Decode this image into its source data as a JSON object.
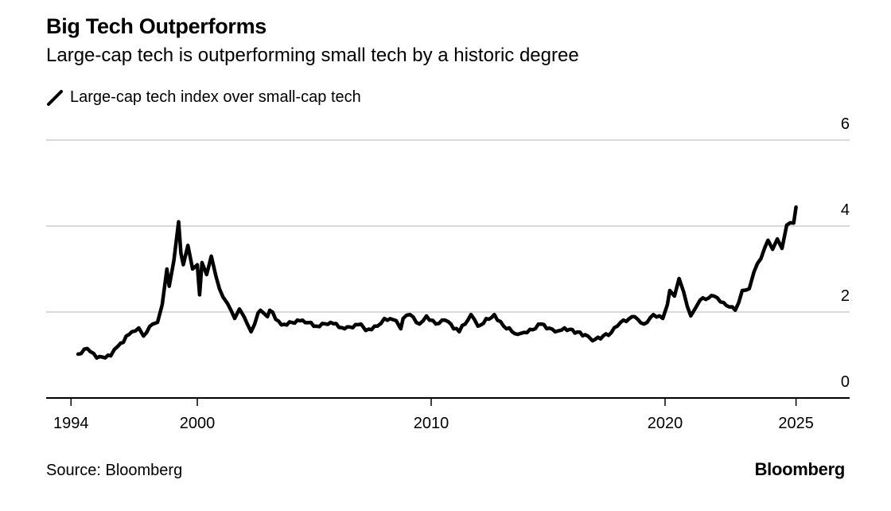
{
  "chart_data": {
    "type": "line",
    "title": "Big Tech Outperforms",
    "subtitle": "Large-cap tech is outperforming small tech by a historic degree",
    "legend": [
      "Large-cap tech index over small-cap tech"
    ],
    "legend_placement": "top-left",
    "source": "Source: Bloomberg",
    "brand": "Bloomberg",
    "xlabel": "",
    "ylabel": "",
    "xlim": [
      1993.5,
      2026.9
    ],
    "ylim": [
      0,
      6
    ],
    "grid": true,
    "line_color": "#000000",
    "grid_color": "#d9d9d9",
    "yticks": [
      {
        "value": 0,
        "label": "0"
      },
      {
        "value": 2,
        "label": "2"
      },
      {
        "value": 4,
        "label": "4"
      },
      {
        "value": 6,
        "label": "6"
      }
    ],
    "xticks": [
      {
        "value": 1994.6,
        "label": "1994"
      },
      {
        "value": 2000,
        "label": "2000"
      },
      {
        "value": 2010,
        "label": "2010"
      },
      {
        "value": 2020,
        "label": "2020"
      },
      {
        "value": 2025.6,
        "label": "2025"
      }
    ],
    "series": [
      {
        "name": "Large-cap tech index over small-cap tech",
        "x": [
          1994.9,
          1995.3,
          1995.7,
          1996.3,
          1996.6,
          1997.2,
          1997.5,
          1997.7,
          1998.1,
          1998.3,
          1998.5,
          1998.7,
          1998.8,
          1999.0,
          1999.2,
          1999.3,
          1999.4,
          1999.6,
          1999.8,
          2000.0,
          2000.1,
          2000.2,
          2000.4,
          2000.6,
          2000.8,
          2001.1,
          2001.3,
          2001.6,
          2001.8,
          2002.0,
          2002.3,
          2002.6,
          2002.7,
          2003.0,
          2003.1,
          2003.6,
          2004.5,
          2005.1,
          2005.7,
          2006.3,
          2007.0,
          2007.2,
          2007.7,
          2008.0,
          2008.5,
          2008.7,
          2008.8,
          2009.1,
          2009.5,
          2009.8,
          2010.2,
          2010.6,
          2011.2,
          2011.7,
          2012.0,
          2012.7,
          2013.1,
          2013.7,
          2014.1,
          2014.7,
          2015.3,
          2015.7,
          2016.7,
          2016.9,
          2017.7,
          2018.1,
          2018.7,
          2019.1,
          2019.5,
          2019.9,
          2020.1,
          2020.2,
          2020.4,
          2020.6,
          2020.8,
          2021.1,
          2021.3,
          2021.5,
          2022.1,
          2022.5,
          2023.0,
          2023.3,
          2023.6,
          2023.8,
          2024.1,
          2024.4,
          2024.6,
          2024.8,
          2025.0,
          2025.2,
          2025.5,
          2025.6
        ],
        "y": [
          1.02,
          1.15,
          0.93,
          0.98,
          1.2,
          1.54,
          1.63,
          1.44,
          1.72,
          1.76,
          2.17,
          3.0,
          2.6,
          3.2,
          4.1,
          3.37,
          3.1,
          3.55,
          3.0,
          3.1,
          2.4,
          3.15,
          2.87,
          3.3,
          2.83,
          2.35,
          2.19,
          1.85,
          2.07,
          1.89,
          1.54,
          1.98,
          2.04,
          1.89,
          2.04,
          1.7,
          1.81,
          1.67,
          1.76,
          1.61,
          1.72,
          1.57,
          1.67,
          1.85,
          1.8,
          1.61,
          1.85,
          1.94,
          1.72,
          1.91,
          1.72,
          1.81,
          1.54,
          1.94,
          1.67,
          1.94,
          1.67,
          1.48,
          1.52,
          1.72,
          1.54,
          1.63,
          1.44,
          1.33,
          1.52,
          1.76,
          1.89,
          1.72,
          1.94,
          1.85,
          2.17,
          2.5,
          2.37,
          2.78,
          2.46,
          1.91,
          2.09,
          2.28,
          2.37,
          2.22,
          2.04,
          2.5,
          2.54,
          2.93,
          3.24,
          3.67,
          3.46,
          3.7,
          3.48,
          4.02,
          4.07,
          4.44
        ]
      }
    ]
  }
}
